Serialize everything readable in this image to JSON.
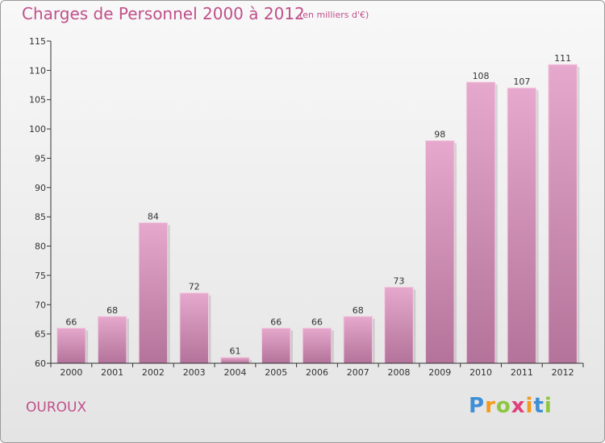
{
  "title": "Charges de Personnel 2000 à 2012",
  "subtitle": "(en milliers d'€)",
  "commune": "OUROUX",
  "logo": {
    "letters": [
      {
        "char": "P",
        "color": "#3f8fd6"
      },
      {
        "char": "r",
        "color": "#f39a1e"
      },
      {
        "char": "o",
        "color": "#8ec63f"
      },
      {
        "char": "x",
        "color": "#e0407a"
      },
      {
        "char": "i",
        "color": "#f39a1e"
      },
      {
        "char": "t",
        "color": "#3f8fd6"
      },
      {
        "char": "i",
        "color": "#8ec63f"
      }
    ]
  },
  "colors": {
    "title": "#c0508a",
    "bar_top": "#e6a8cc",
    "bar_bottom": "#b3739a",
    "axis": "#333333"
  },
  "chart_data": {
    "type": "bar",
    "title": "Charges de Personnel 2000 à 2012",
    "subtitle": "(en milliers d'€)",
    "xlabel": "",
    "ylabel": "",
    "categories": [
      "2000",
      "2001",
      "2002",
      "2003",
      "2004",
      "2005",
      "2006",
      "2007",
      "2008",
      "2009",
      "2010",
      "2011",
      "2012"
    ],
    "values": [
      66,
      68,
      84,
      72,
      61,
      66,
      66,
      68,
      73,
      98,
      108,
      107,
      111
    ],
    "ylim": [
      60,
      115
    ],
    "yticks": [
      60,
      65,
      70,
      75,
      80,
      85,
      90,
      95,
      100,
      105,
      110,
      115
    ],
    "grid": false,
    "legend": "none"
  }
}
